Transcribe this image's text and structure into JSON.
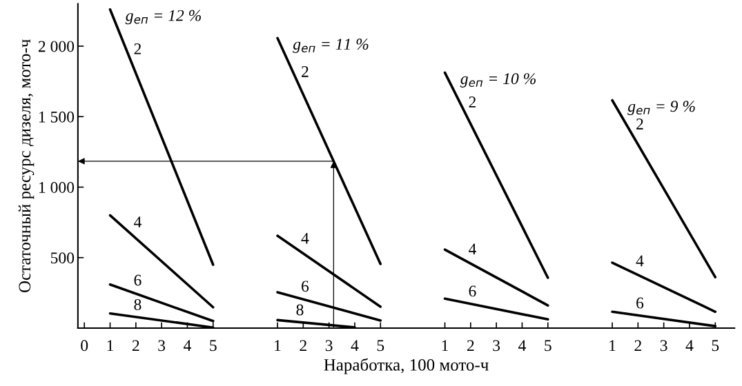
{
  "chart_data": {
    "type": "line",
    "xlabel": "Наработка, 100 мото-ч",
    "ylabel": "Остаточный ресурс дизеля, мото-ч",
    "ylim": [
      0,
      2300
    ],
    "categories": [
      "0",
      null,
      "1",
      null,
      "2",
      null,
      "3",
      null,
      "4",
      null,
      "5",
      null,
      null,
      null,
      null,
      "1",
      null,
      "2",
      null,
      "3",
      null,
      "4",
      null,
      "5",
      null,
      null,
      null,
      null,
      "1",
      null,
      "2",
      null,
      "3",
      null,
      "4",
      null,
      "5",
      null,
      null,
      null,
      null,
      "1",
      null,
      "2",
      null,
      "3",
      null,
      "4",
      null,
      "5",
      null
    ],
    "yticks": [
      {
        "value": 500,
        "label": "500"
      },
      {
        "value": 1000,
        "label": "1 000"
      },
      {
        "value": 1500,
        "label": "1 500"
      },
      {
        "value": 2000,
        "label": "2 000"
      }
    ],
    "grid": false,
    "legend": false,
    "marker": "none",
    "line_style": "solid",
    "series": [
      {
        "name": "2",
        "color": "#000000",
        "values": [
          null,
          null,
          2260,
          null,
          null,
          null,
          null,
          null,
          null,
          null,
          450,
          null,
          null,
          null,
          null,
          null,
          null,
          null,
          null,
          null,
          null,
          null,
          null,
          null,
          null,
          null,
          null,
          null,
          null,
          null,
          null,
          null,
          null,
          null,
          null,
          null,
          null,
          null,
          null,
          null,
          null,
          null,
          null,
          null,
          null,
          null,
          null,
          null,
          null,
          null,
          null
        ]
      },
      {
        "name": "4",
        "color": "#000000",
        "values": [
          null,
          null,
          800,
          null,
          null,
          null,
          null,
          null,
          null,
          null,
          148,
          null,
          null,
          null,
          null,
          null,
          null,
          null,
          null,
          null,
          null,
          null,
          null,
          null,
          null,
          null,
          null,
          null,
          null,
          null,
          null,
          null,
          null,
          null,
          null,
          null,
          null,
          null,
          null,
          null,
          null,
          null,
          null,
          null,
          null,
          null,
          null,
          null,
          null,
          null,
          null
        ]
      },
      {
        "name": "6",
        "color": "#000000",
        "values": [
          null,
          null,
          309,
          null,
          null,
          null,
          null,
          null,
          null,
          null,
          50,
          null,
          null,
          null,
          null,
          null,
          null,
          null,
          null,
          null,
          null,
          null,
          null,
          null,
          null,
          null,
          null,
          null,
          null,
          null,
          null,
          null,
          null,
          null,
          null,
          null,
          null,
          null,
          null,
          null,
          null,
          null,
          null,
          null,
          null,
          null,
          null,
          null,
          null,
          null,
          null
        ]
      },
      {
        "name": "8",
        "color": "#000000",
        "values": [
          null,
          null,
          104,
          null,
          null,
          null,
          null,
          null,
          null,
          null,
          4,
          null,
          null,
          null,
          null,
          null,
          null,
          null,
          null,
          null,
          null,
          null,
          null,
          null,
          null,
          null,
          null,
          null,
          null,
          null,
          null,
          null,
          null,
          null,
          null,
          null,
          null,
          null,
          null,
          null,
          null,
          null,
          null,
          null,
          null,
          null,
          null,
          null,
          null,
          null,
          null
        ]
      },
      {
        "name": "2",
        "color": "#000000",
        "values": [
          null,
          null,
          null,
          null,
          null,
          null,
          null,
          null,
          null,
          null,
          null,
          null,
          null,
          null,
          null,
          2057,
          null,
          null,
          null,
          null,
          null,
          null,
          null,
          455,
          null,
          null,
          null,
          null,
          null,
          null,
          null,
          null,
          null,
          null,
          null,
          null,
          null,
          null,
          null,
          null,
          null,
          null,
          null,
          null,
          null,
          null,
          null,
          null,
          null,
          null,
          null
        ]
      },
      {
        "name": "4",
        "color": "#000000",
        "values": [
          null,
          null,
          null,
          null,
          null,
          null,
          null,
          null,
          null,
          null,
          null,
          null,
          null,
          null,
          null,
          655,
          null,
          null,
          null,
          null,
          null,
          null,
          null,
          152,
          null,
          null,
          null,
          null,
          null,
          null,
          null,
          null,
          null,
          null,
          null,
          null,
          null,
          null,
          null,
          null,
          null,
          null,
          null,
          null,
          null,
          null,
          null,
          null,
          null,
          null,
          null
        ]
      },
      {
        "name": "6",
        "color": "#000000",
        "values": [
          null,
          null,
          null,
          null,
          null,
          null,
          null,
          null,
          null,
          null,
          null,
          null,
          null,
          null,
          null,
          254,
          null,
          null,
          null,
          null,
          null,
          null,
          null,
          54,
          null,
          null,
          null,
          null,
          null,
          null,
          null,
          null,
          null,
          null,
          null,
          null,
          null,
          null,
          null,
          null,
          null,
          null,
          null,
          null,
          null,
          null,
          null,
          null,
          null,
          null,
          null
        ]
      },
      {
        "name": "8",
        "color": "#000000",
        "values": [
          null,
          null,
          null,
          null,
          null,
          null,
          null,
          null,
          null,
          null,
          null,
          null,
          null,
          null,
          null,
          57,
          null,
          null,
          null,
          null,
          null,
          5,
          null,
          null,
          null,
          null,
          null,
          null,
          null,
          null,
          null,
          null,
          null,
          null,
          null,
          null,
          null,
          null,
          null,
          null,
          null,
          null,
          null,
          null,
          null,
          null,
          null,
          null,
          null,
          null,
          null
        ]
      },
      {
        "name": "2",
        "color": "#000000",
        "values": [
          null,
          null,
          null,
          null,
          null,
          null,
          null,
          null,
          null,
          null,
          null,
          null,
          null,
          null,
          null,
          null,
          null,
          null,
          null,
          null,
          null,
          null,
          null,
          null,
          null,
          null,
          null,
          null,
          1812,
          null,
          null,
          null,
          null,
          null,
          null,
          null,
          357,
          null,
          null,
          null,
          null,
          null,
          null,
          null,
          null,
          null,
          null,
          null,
          null,
          null,
          null
        ]
      },
      {
        "name": "4",
        "color": "#000000",
        "values": [
          null,
          null,
          null,
          null,
          null,
          null,
          null,
          null,
          null,
          null,
          null,
          null,
          null,
          null,
          null,
          null,
          null,
          null,
          null,
          null,
          null,
          null,
          null,
          null,
          null,
          null,
          null,
          null,
          557,
          null,
          null,
          null,
          null,
          null,
          null,
          null,
          161,
          null,
          null,
          null,
          null,
          null,
          null,
          null,
          null,
          null,
          null,
          null,
          null,
          null,
          null
        ]
      },
      {
        "name": "6",
        "color": "#000000",
        "values": [
          null,
          null,
          null,
          null,
          null,
          null,
          null,
          null,
          null,
          null,
          null,
          null,
          null,
          null,
          null,
          null,
          null,
          null,
          null,
          null,
          null,
          null,
          null,
          null,
          null,
          null,
          null,
          null,
          209,
          null,
          null,
          null,
          null,
          null,
          null,
          null,
          62,
          null,
          null,
          null,
          null,
          null,
          null,
          null,
          null,
          null,
          null,
          null,
          null,
          null,
          null
        ]
      },
      {
        "name": "2",
        "color": "#000000",
        "values": [
          null,
          null,
          null,
          null,
          null,
          null,
          null,
          null,
          null,
          null,
          null,
          null,
          null,
          null,
          null,
          null,
          null,
          null,
          null,
          null,
          null,
          null,
          null,
          null,
          null,
          null,
          null,
          null,
          null,
          null,
          null,
          null,
          null,
          null,
          null,
          null,
          null,
          null,
          null,
          null,
          null,
          1616,
          null,
          null,
          null,
          null,
          null,
          null,
          null,
          361,
          null
        ]
      },
      {
        "name": "4",
        "color": "#000000",
        "values": [
          null,
          null,
          null,
          null,
          null,
          null,
          null,
          null,
          null,
          null,
          null,
          null,
          null,
          null,
          null,
          null,
          null,
          null,
          null,
          null,
          null,
          null,
          null,
          null,
          null,
          null,
          null,
          null,
          null,
          null,
          null,
          null,
          null,
          null,
          null,
          null,
          null,
          null,
          null,
          null,
          null,
          464,
          null,
          null,
          null,
          null,
          null,
          null,
          null,
          116,
          null
        ]
      },
      {
        "name": "6",
        "color": "#000000",
        "values": [
          null,
          null,
          null,
          null,
          null,
          null,
          null,
          null,
          null,
          null,
          null,
          null,
          null,
          null,
          null,
          null,
          null,
          null,
          null,
          null,
          null,
          null,
          null,
          null,
          null,
          null,
          null,
          null,
          null,
          null,
          null,
          null,
          null,
          null,
          null,
          null,
          null,
          null,
          null,
          null,
          null,
          116,
          null,
          null,
          null,
          null,
          null,
          null,
          null,
          14,
          null
        ]
      }
    ],
    "annotations": [
      "g$_{еп}$ = 12 %",
      "g$_{еп}$ = 11 %",
      "g$_{еп}$ = 10 %",
      "g$_{еп}$ = 9 %"
    ]
  }
}
